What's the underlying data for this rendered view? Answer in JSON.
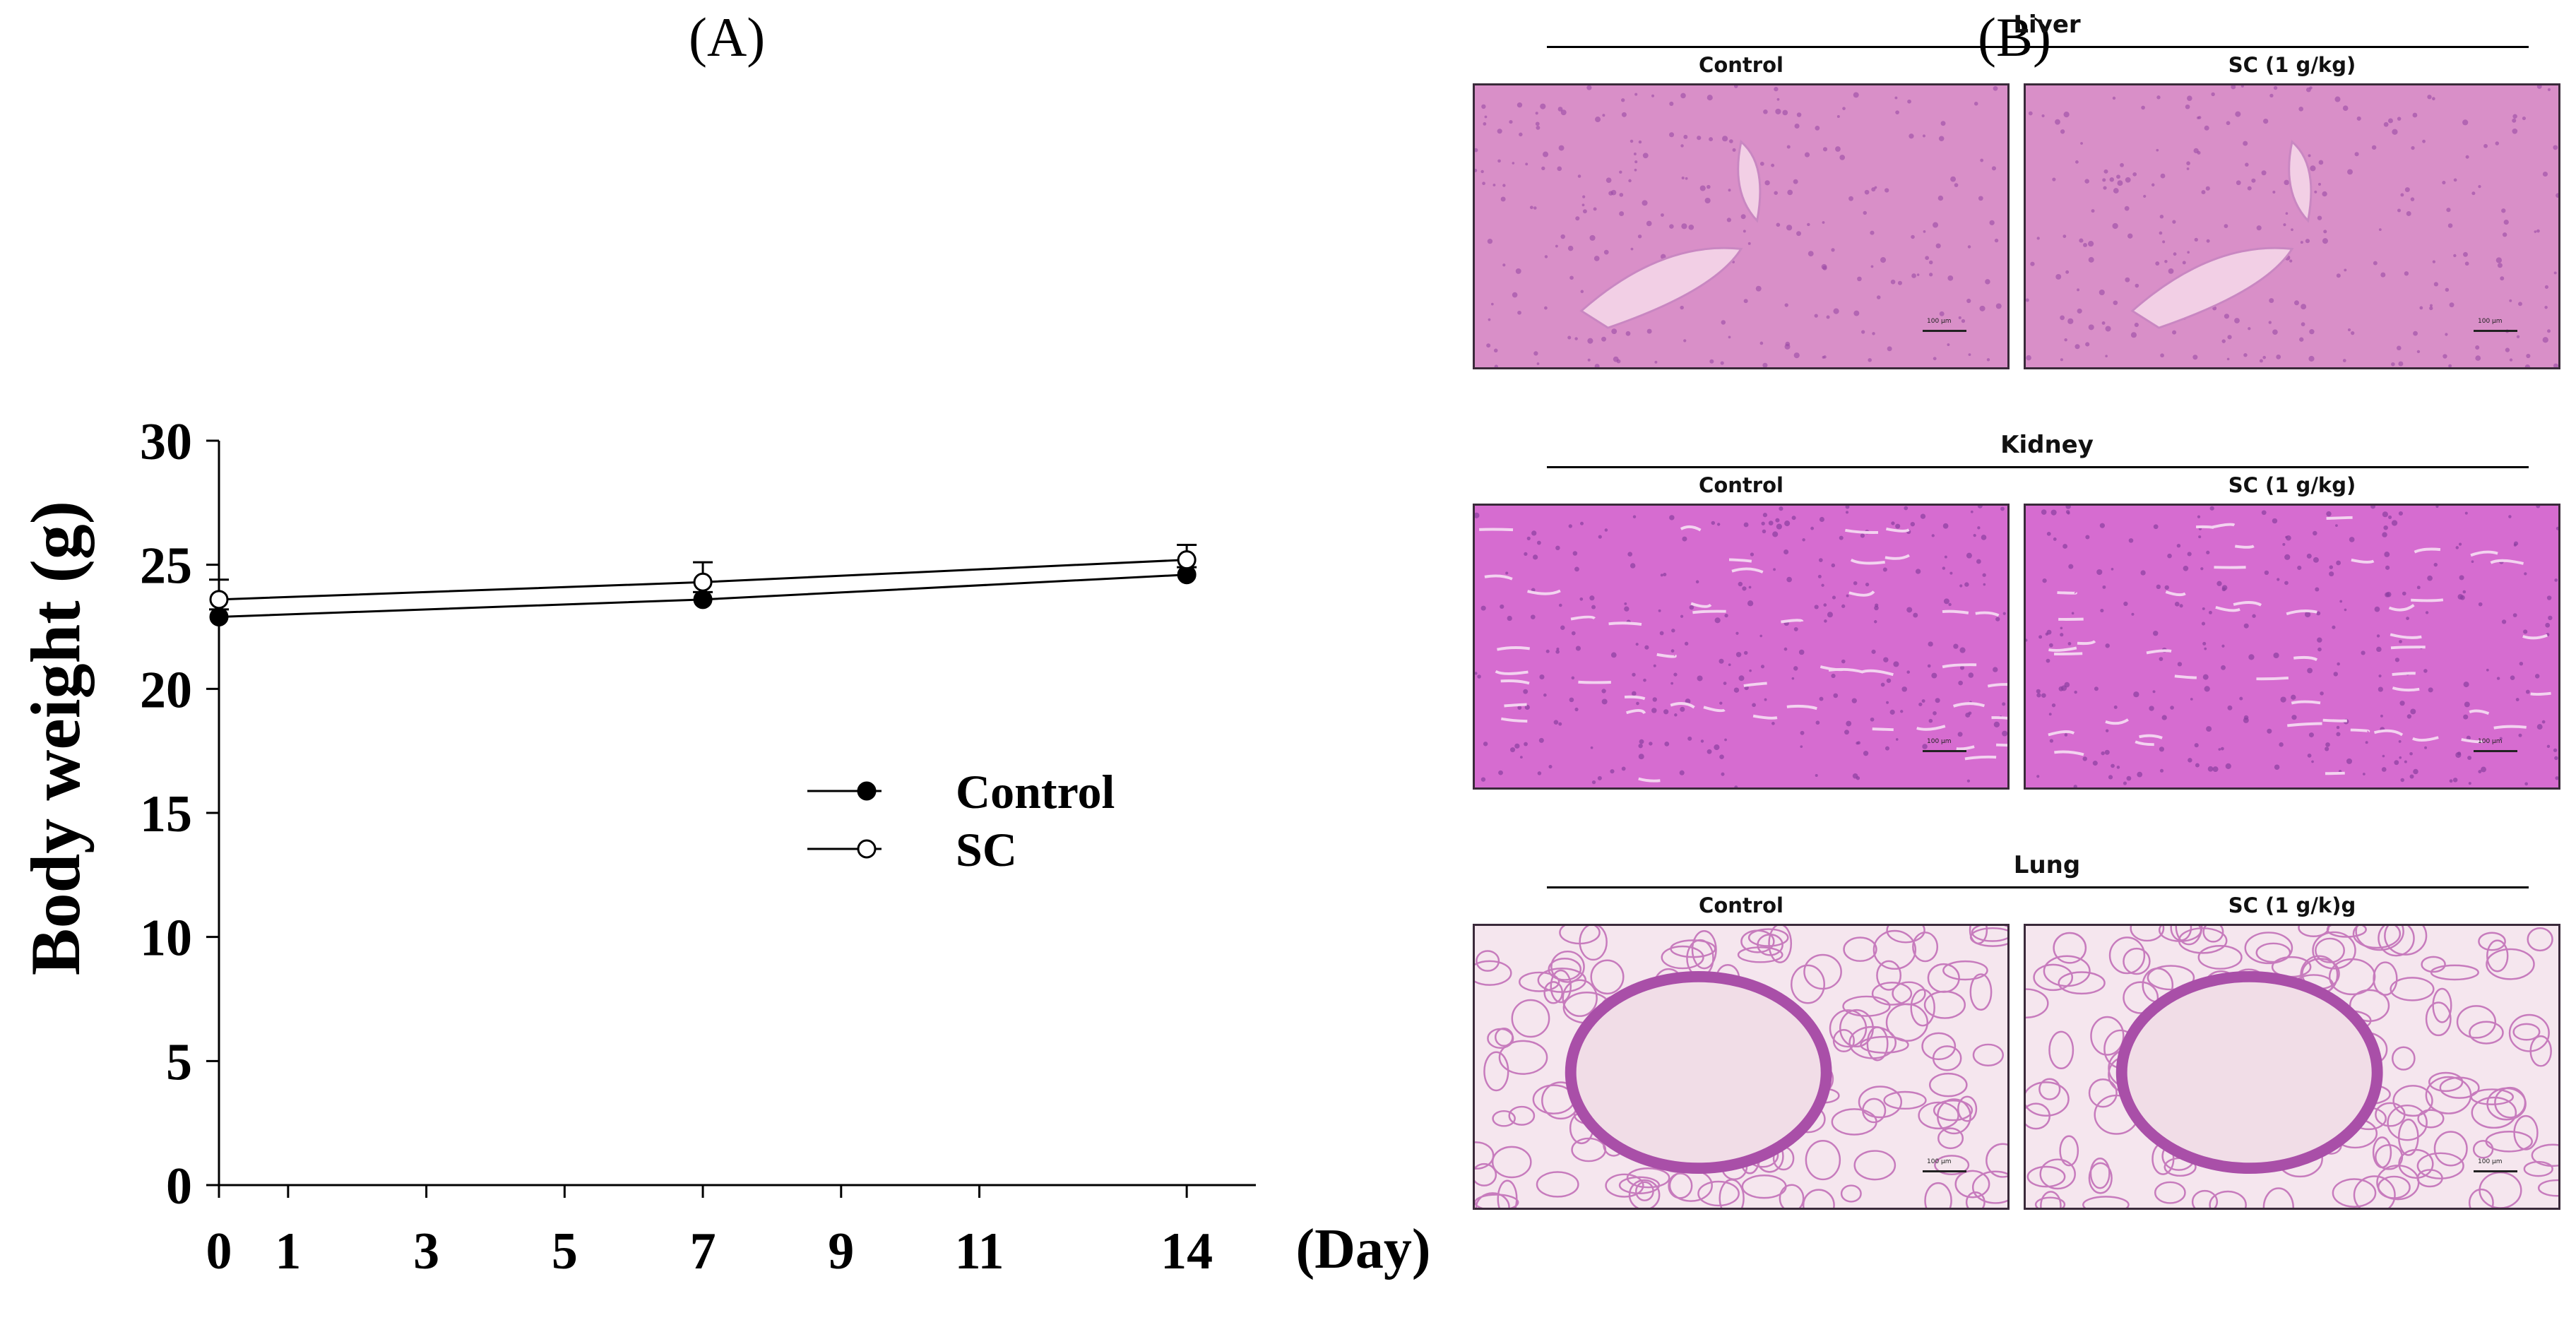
{
  "panel_a_label": "(A)",
  "panel_b_label": "(B)",
  "chart_data": {
    "type": "line",
    "ylabel": "Body weight (g)",
    "xunit_label": "(Day)",
    "x_ticks": [
      0,
      1,
      3,
      5,
      7,
      9,
      11,
      14
    ],
    "y_ticks": [
      0,
      5,
      10,
      15,
      20,
      25,
      30
    ],
    "xlim": [
      0,
      15
    ],
    "ylim": [
      0,
      30
    ],
    "grid": false,
    "legend_position": "center-right",
    "series": [
      {
        "name": "Control",
        "marker": "filled-circle",
        "color": "#000000",
        "x": [
          0,
          7,
          14
        ],
        "y": [
          22.9,
          23.6,
          24.6
        ],
        "error": [
          0.3,
          0.3,
          0.3
        ]
      },
      {
        "name": "SC",
        "marker": "open-circle",
        "color": "#000000",
        "x": [
          0,
          7,
          14
        ],
        "y": [
          23.6,
          24.3,
          25.2
        ],
        "error": [
          0.8,
          0.8,
          0.6
        ]
      }
    ]
  },
  "histology": {
    "sections": [
      {
        "title": "Liver",
        "control_label": "Control",
        "treated_label": "SC (1 g/kg)",
        "style": "liver"
      },
      {
        "title": "Kidney",
        "control_label": "Control",
        "treated_label": "SC (1 g/kg)",
        "style": "kidney"
      },
      {
        "title": "Lung",
        "control_label": "Control",
        "treated_label": "SC (1 g/k)g",
        "style": "lung"
      }
    ],
    "scale_bar_label": "100 μm",
    "colors": {
      "liver": "#d98fc8",
      "kidney": "#d66cd0",
      "lung": "#f5e6ee"
    }
  }
}
